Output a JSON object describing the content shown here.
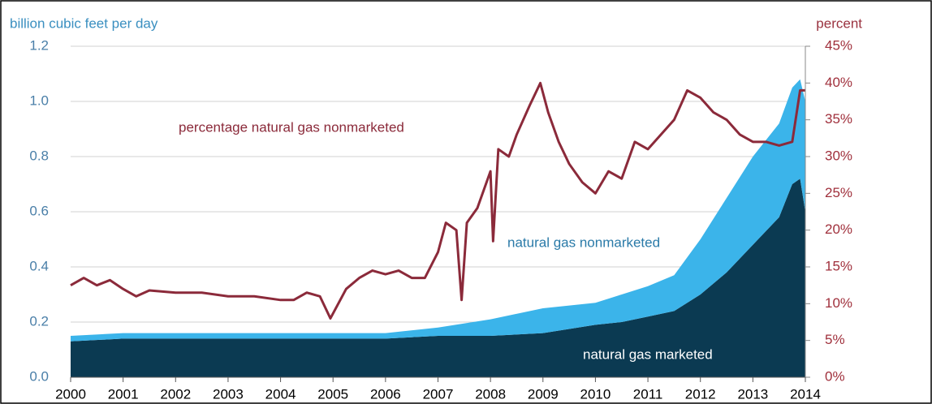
{
  "chart_data": {
    "type": "stacked-area-line",
    "ylabel": "billion cubic feet per day",
    "y2label": "percent",
    "annotations": [
      "percentage natural gas nonmarketed",
      "natural gas nonmarketed",
      "natural gas marketed"
    ],
    "xlim": [
      2000,
      2014
    ],
    "xticks": [
      2000,
      2001,
      2002,
      2003,
      2004,
      2005,
      2006,
      2007,
      2008,
      2009,
      2010,
      2011,
      2012,
      2013,
      2014
    ],
    "ylim": [
      0,
      1.2
    ],
    "yticks": [
      {
        "value": 0,
        "label": "0.0"
      },
      0.2,
      0.4,
      0.6,
      0.8,
      {
        "value": 1,
        "label": "1.0"
      },
      1.2
    ],
    "y2lim": [
      0,
      45
    ],
    "y2ticks": [
      {
        "value": 0,
        "label": "0%"
      },
      {
        "value": 5,
        "label": "5%"
      },
      {
        "value": 10,
        "label": "10%"
      },
      {
        "value": 15,
        "label": "15%"
      },
      {
        "value": 20,
        "label": "20%"
      },
      {
        "value": 25,
        "label": "25%"
      },
      {
        "value": 30,
        "label": "30%"
      },
      {
        "value": 35,
        "label": "35%"
      },
      {
        "value": 40,
        "label": "40%"
      },
      {
        "value": 45,
        "label": "45%"
      }
    ],
    "grid": true,
    "x": [
      2000,
      2001,
      2002,
      2003,
      2004,
      2005,
      2006,
      2007,
      2008,
      2009,
      2010,
      2010.5,
      2011,
      2011.5,
      2012,
      2012.5,
      2013,
      2013.5,
      2013.75,
      2013.9,
      2014
    ],
    "series": [
      {
        "name": "natural gas marketed",
        "color": "#0b3a52",
        "kind": "area",
        "values": [
          0.13,
          0.14,
          0.14,
          0.14,
          0.14,
          0.14,
          0.14,
          0.15,
          0.15,
          0.16,
          0.19,
          0.2,
          0.22,
          0.24,
          0.3,
          0.38,
          0.48,
          0.58,
          0.7,
          0.72,
          0.6
        ]
      },
      {
        "name": "natural gas nonmarketed",
        "color": "#3bb4ea",
        "kind": "area",
        "values": [
          0.02,
          0.02,
          0.02,
          0.02,
          0.02,
          0.02,
          0.02,
          0.03,
          0.06,
          0.09,
          0.08,
          0.1,
          0.11,
          0.13,
          0.2,
          0.27,
          0.32,
          0.34,
          0.35,
          0.36,
          0.4
        ]
      },
      {
        "name": "percentage natural gas nonmarketed",
        "color": "#8b2a3a",
        "kind": "line",
        "axis": "y2",
        "x": [
          2000,
          2000.25,
          2000.5,
          2000.75,
          2001,
          2001.25,
          2001.5,
          2002,
          2002.5,
          2003,
          2003.5,
          2004,
          2004.25,
          2004.5,
          2004.75,
          2004.95,
          2005.25,
          2005.5,
          2005.75,
          2006,
          2006.25,
          2006.5,
          2006.75,
          2007,
          2007.15,
          2007.35,
          2007.45,
          2007.55,
          2007.75,
          2008,
          2008.05,
          2008.15,
          2008.35,
          2008.5,
          2008.75,
          2008.95,
          2009.1,
          2009.3,
          2009.5,
          2009.75,
          2010,
          2010.25,
          2010.5,
          2010.75,
          2011,
          2011.25,
          2011.5,
          2011.75,
          2012,
          2012.25,
          2012.5,
          2012.75,
          2013,
          2013.25,
          2013.5,
          2013.75,
          2013.9,
          2014
        ],
        "values": [
          12.5,
          13.5,
          12.5,
          13.2,
          12,
          11,
          11.8,
          11.5,
          11.5,
          11,
          11,
          10.5,
          10.5,
          11.5,
          11,
          8,
          12,
          13.5,
          14.5,
          14,
          14.5,
          13.5,
          13.5,
          17,
          21,
          20,
          10.5,
          21,
          23,
          28,
          18.5,
          31,
          30,
          33,
          37,
          40,
          36,
          32,
          29,
          26.5,
          25,
          28,
          27,
          32,
          31,
          33,
          35,
          39,
          38,
          36,
          35,
          33,
          32,
          32,
          31.5,
          32,
          39,
          39
        ]
      }
    ]
  }
}
